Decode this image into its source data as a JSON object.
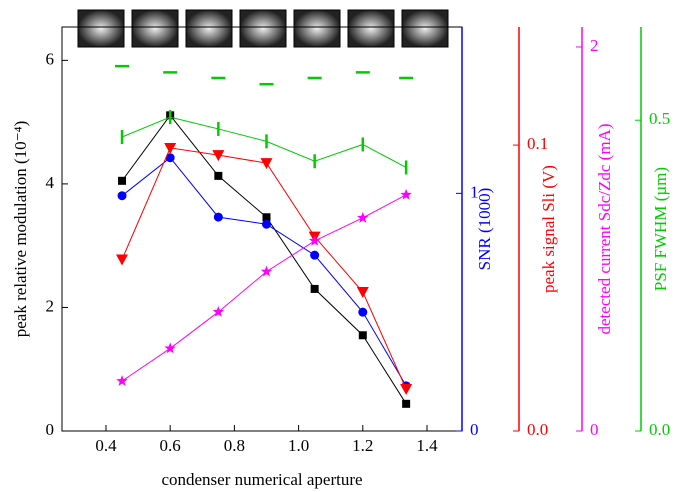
{
  "chart_data": {
    "type": "line",
    "x_label": "condenser numerical aperture",
    "x": [
      0.45,
      0.6,
      0.75,
      0.9,
      1.05,
      1.2,
      1.335
    ],
    "xlim": [
      0.263,
      1.509
    ],
    "xticks": [
      0.4,
      0.6,
      0.8,
      {
        "value": 1,
        "label": "1.0"
      },
      1.2,
      1.4
    ],
    "y_axes": [
      {
        "label": "peak relative modulation (10⁻⁴)",
        "color": "#000000",
        "lim": [
          0,
          6.54
        ],
        "ticks": [
          0,
          2,
          4,
          6
        ]
      },
      {
        "label": "SNR (1000)",
        "color": "#0000ff",
        "lim": [
          0,
          1.7
        ],
        "ticks": [
          0,
          1
        ]
      },
      {
        "label": "peak signal Sli (V)",
        "color": "#ff0000",
        "lim": [
          0,
          0.1413
        ],
        "ticks": [
          {
            "value": 0,
            "label": "0.0"
          },
          0.1
        ]
      },
      {
        "label": "detected current Sdc/Zdc (mA)",
        "color": "#ff00ff",
        "lim": [
          0,
          2.104
        ],
        "ticks": [
          0,
          2
        ]
      },
      {
        "label": "PSF FWHM (µm)",
        "color": "#00cc00",
        "lim": [
          0,
          0.65
        ],
        "ticks": [
          {
            "value": 0,
            "label": "0.0"
          },
          0.5
        ]
      }
    ],
    "series": [
      {
        "axis": 0,
        "color": "#000000",
        "marker": "square",
        "line": true,
        "values": [
          4.05,
          5.11,
          4.13,
          3.46,
          2.3,
          1.55,
          0.44
        ]
      },
      {
        "axis": 1,
        "color": "#0000ff",
        "marker": "circle",
        "line": true,
        "values": [
          0.99,
          1.15,
          0.9,
          0.87,
          0.74,
          0.5,
          0.19
        ]
      },
      {
        "axis": 2,
        "color": "#ff0000",
        "marker": "triangle-down",
        "line": true,
        "values": [
          0.06,
          0.099,
          0.0965,
          0.0937,
          0.068,
          0.0486,
          0.0147
        ]
      },
      {
        "axis": 3,
        "color": "#ff00ff",
        "marker": "star",
        "line": true,
        "values": [
          0.26,
          0.43,
          0.62,
          0.83,
          0.99,
          1.11,
          1.23
        ]
      },
      {
        "axis": 4,
        "color": "#00cc00",
        "marker": "hline",
        "line": false,
        "values": [
          0.587,
          0.577,
          0.568,
          0.558,
          0.568,
          0.577,
          0.568
        ]
      },
      {
        "axis": 4,
        "color": "#00cc00",
        "marker": "vline",
        "line": true,
        "values": [
          0.473,
          0.505,
          0.486,
          0.466,
          0.434,
          0.461,
          0.424
        ]
      }
    ]
  }
}
